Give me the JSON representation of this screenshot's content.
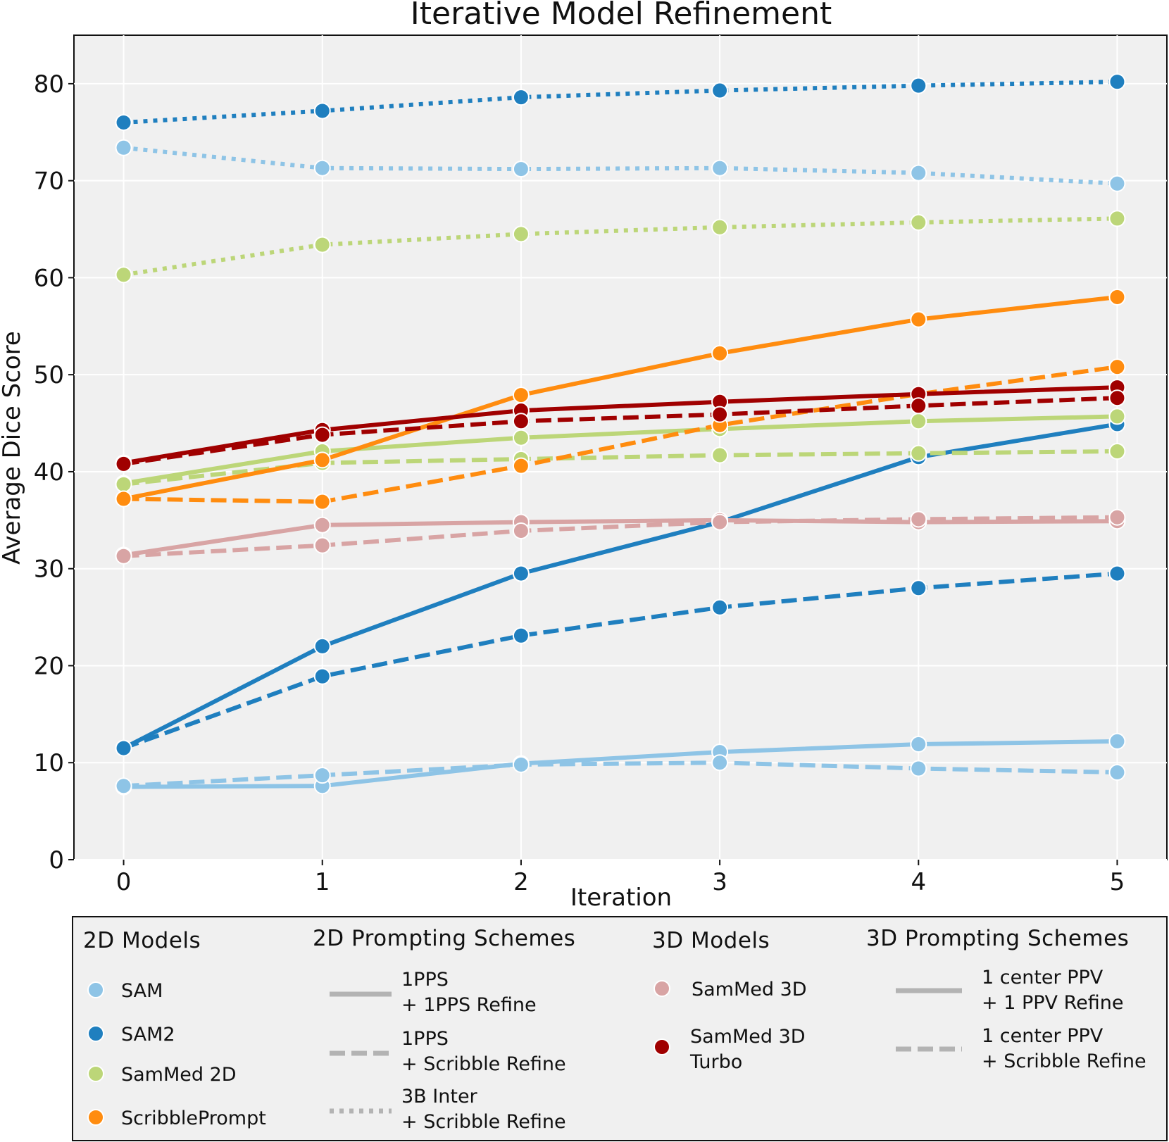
{
  "chart_data": {
    "type": "line",
    "title": "Iterative Model Refinement",
    "xlabel": "Iteration",
    "ylabel": "Average Dice Score",
    "x": [
      0,
      1,
      2,
      3,
      4,
      5
    ],
    "xlim": [
      -0.25,
      5.25
    ],
    "ylim": [
      0,
      85
    ],
    "yticks": [
      0,
      10,
      20,
      30,
      40,
      50,
      60,
      70,
      80
    ],
    "grid": true,
    "legend_position": "bottom",
    "series": [
      {
        "model": "SAM",
        "scheme": "1PPS + 1PPS Refine",
        "color": "#8ec4e6",
        "dash": "solid",
        "values": [
          7.5,
          7.6,
          9.9,
          11.1,
          11.9,
          12.2
        ]
      },
      {
        "model": "SAM",
        "scheme": "1PPS + Scribble Refine",
        "color": "#8ec4e6",
        "dash": "dashed",
        "values": [
          7.6,
          8.7,
          9.8,
          10.0,
          9.4,
          9.0
        ]
      },
      {
        "model": "SAM",
        "scheme": "3B Inter + Scribble Refine",
        "color": "#8ec4e6",
        "dash": "dotted",
        "values": [
          73.4,
          71.3,
          71.2,
          71.3,
          70.8,
          69.7
        ]
      },
      {
        "model": "SAM2",
        "scheme": "1PPS + 1PPS Refine",
        "color": "#1f7fbf",
        "dash": "solid",
        "values": [
          11.5,
          22.0,
          29.5,
          34.8,
          41.5,
          44.9
        ]
      },
      {
        "model": "SAM2",
        "scheme": "1PPS + Scribble Refine",
        "color": "#1f7fbf",
        "dash": "dashed",
        "values": [
          11.5,
          18.9,
          23.1,
          26.0,
          28.0,
          29.5
        ]
      },
      {
        "model": "SAM2",
        "scheme": "3B Inter + Scribble Refine",
        "color": "#1f7fbf",
        "dash": "dotted",
        "values": [
          76.0,
          77.2,
          78.6,
          79.3,
          79.8,
          80.2
        ]
      },
      {
        "model": "SamMed 2D",
        "scheme": "1PPS + 1PPS Refine",
        "color": "#bcd678",
        "dash": "solid",
        "values": [
          38.8,
          42.1,
          43.5,
          44.4,
          45.2,
          45.7
        ]
      },
      {
        "model": "SamMed 2D",
        "scheme": "1PPS + Scribble Refine",
        "color": "#bcd678",
        "dash": "dashed",
        "values": [
          38.7,
          40.9,
          41.3,
          41.7,
          41.9,
          42.1
        ]
      },
      {
        "model": "SamMed 2D",
        "scheme": "3B Inter + Scribble Refine",
        "color": "#bcd678",
        "dash": "dotted",
        "values": [
          60.3,
          63.4,
          64.5,
          65.2,
          65.7,
          66.1
        ]
      },
      {
        "model": "ScribblePrompt",
        "scheme": "1PPS + 1PPS Refine",
        "color": "#ff8c0f",
        "dash": "solid",
        "values": [
          37.2,
          41.2,
          47.9,
          52.2,
          55.7,
          58.0
        ]
      },
      {
        "model": "ScribblePrompt",
        "scheme": "1PPS + Scribble Refine",
        "color": "#ff8c0f",
        "dash": "dashed",
        "values": [
          37.2,
          36.9,
          40.6,
          44.8,
          48.0,
          50.8
        ]
      },
      {
        "model": "SamMed 3D",
        "scheme": "1 center PPV + 1 PPV Refine",
        "color": "#d8a4a4",
        "dash": "solid",
        "values": [
          31.4,
          34.5,
          34.8,
          35.0,
          34.8,
          34.9
        ]
      },
      {
        "model": "SamMed 3D",
        "scheme": "1 center PPV + Scribble Refine",
        "color": "#d8a4a4",
        "dash": "dashed",
        "values": [
          31.3,
          32.4,
          33.9,
          34.8,
          35.1,
          35.3
        ]
      },
      {
        "model": "SamMed 3D Turbo",
        "scheme": "1 center PPV + 1 PPV Refine",
        "color": "#a00000",
        "dash": "solid",
        "values": [
          40.9,
          44.3,
          46.3,
          47.2,
          48.0,
          48.7
        ]
      },
      {
        "model": "SamMed 3D Turbo",
        "scheme": "1 center PPV + Scribble Refine",
        "color": "#a00000",
        "dash": "dashed",
        "values": [
          40.8,
          43.8,
          45.2,
          45.9,
          46.8,
          47.6
        ]
      }
    ]
  },
  "legend": {
    "models_2d": {
      "title": "2D Models",
      "items": [
        {
          "label": "SAM",
          "color": "#8ec4e6"
        },
        {
          "label": "SAM2",
          "color": "#1f7fbf"
        },
        {
          "label": "SamMed 2D",
          "color": "#bcd678"
        },
        {
          "label": "ScribblePrompt",
          "color": "#ff8c0f"
        }
      ]
    },
    "schemes_2d": {
      "title": "2D Prompting Schemes",
      "items": [
        {
          "line1": "1PPS",
          "line2": "+ 1PPS Refine",
          "dash": "solid"
        },
        {
          "line1": "1PPS",
          "line2": "+ Scribble Refine",
          "dash": "dashed"
        },
        {
          "line1": "3B Inter",
          "line2": "+ Scribble Refine",
          "dash": "dotted"
        }
      ]
    },
    "models_3d": {
      "title": "3D Models",
      "items": [
        {
          "line1": "SamMed 3D",
          "line2": "",
          "color": "#d8a4a4"
        },
        {
          "line1": "SamMed 3D",
          "line2": "Turbo",
          "color": "#a00000"
        }
      ]
    },
    "schemes_3d": {
      "title": "3D Prompting Schemes",
      "items": [
        {
          "line1": "1 center PPV",
          "line2": "+ 1 PPV Refine",
          "dash": "solid"
        },
        {
          "line1": "1 center PPV",
          "line2": "+ Scribble  Refine",
          "dash": "dashed"
        }
      ]
    }
  }
}
